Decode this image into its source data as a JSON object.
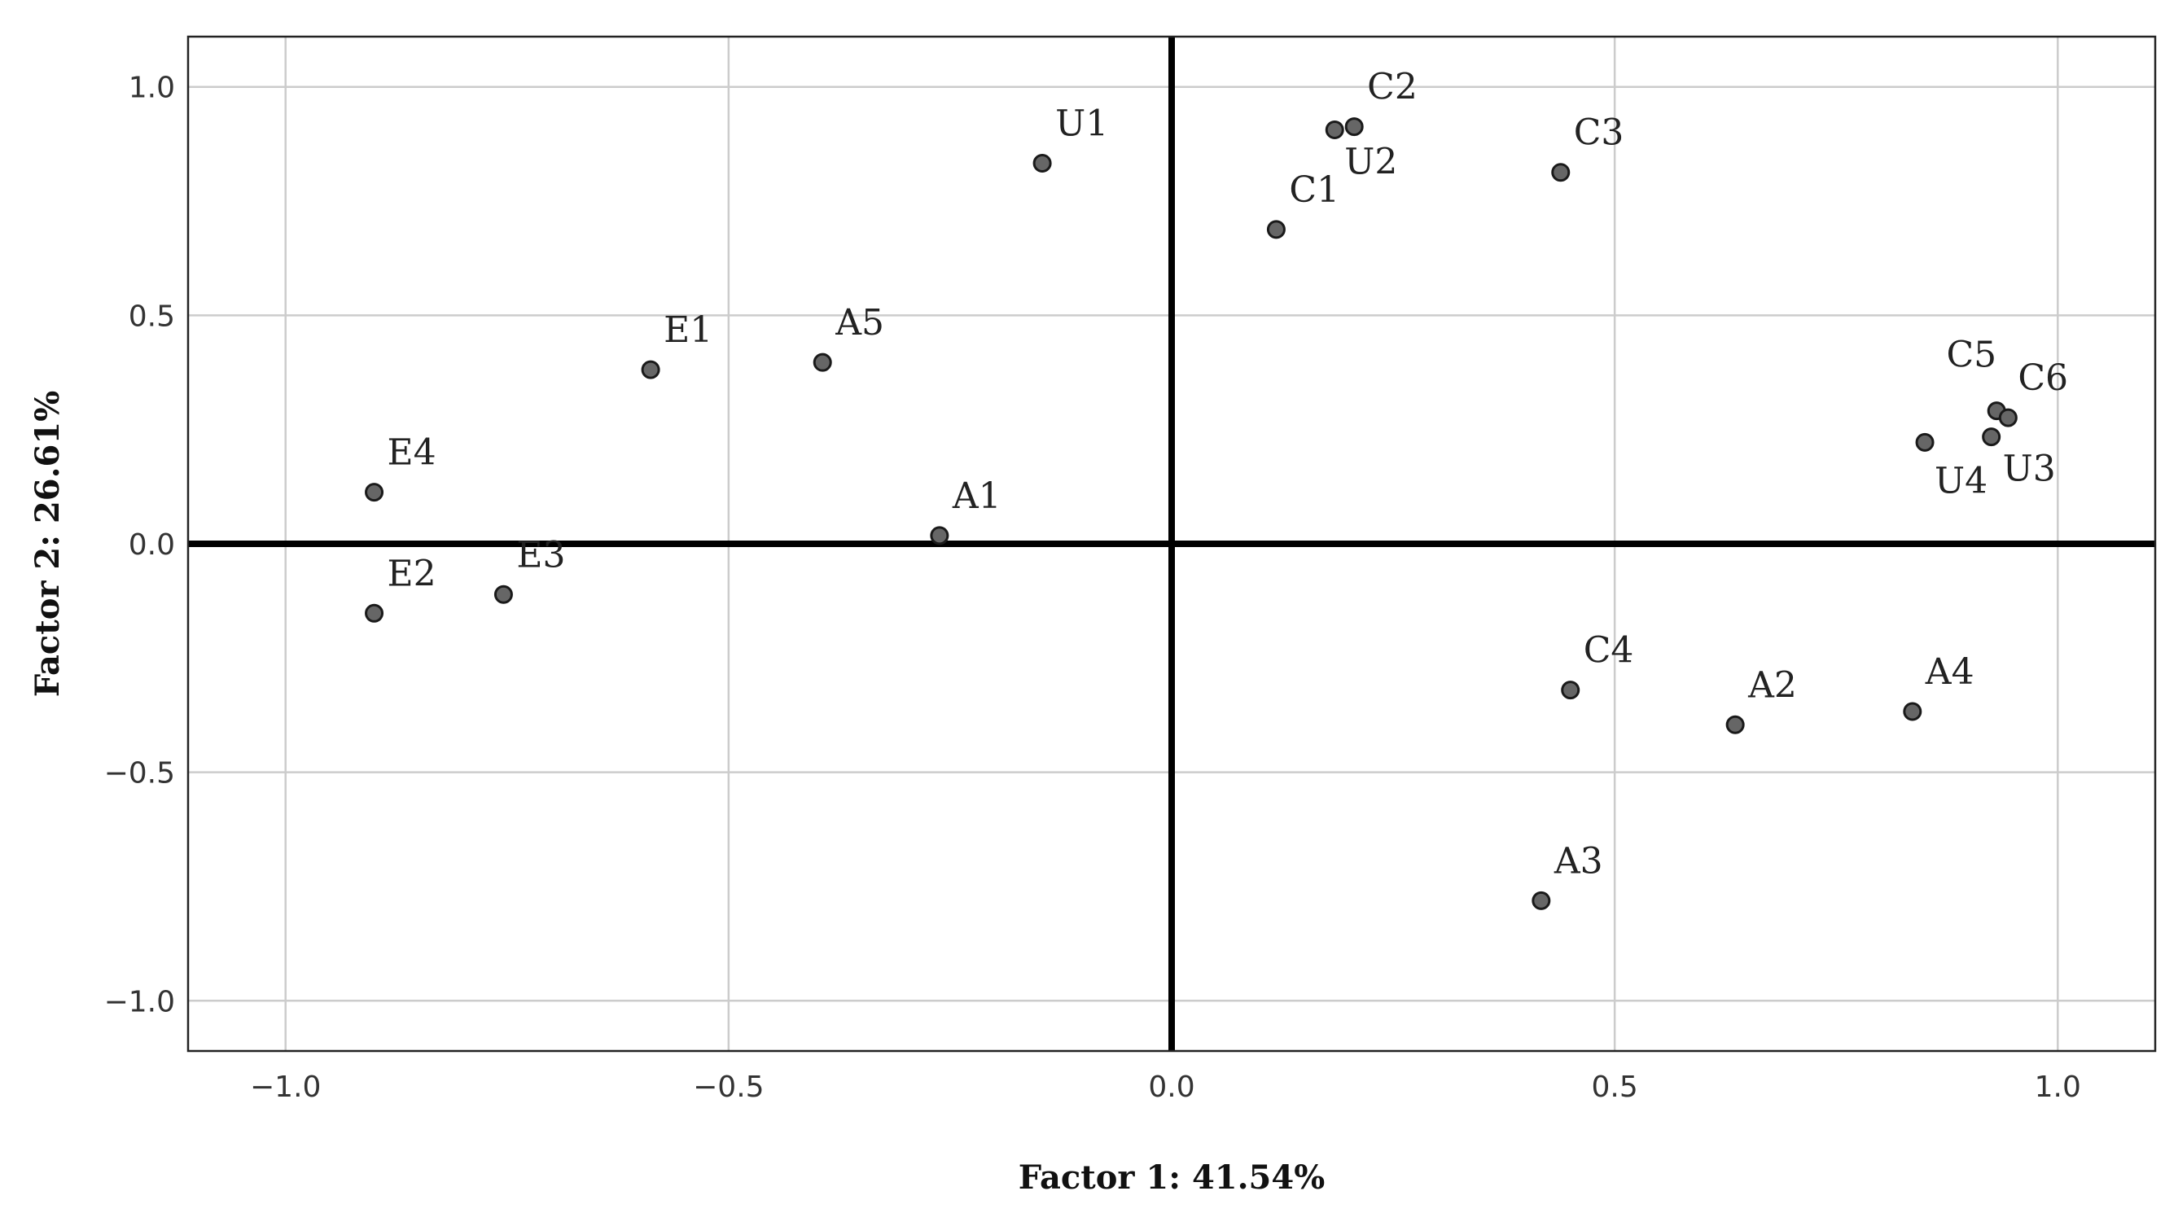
{
  "chart_data": {
    "type": "scatter",
    "title": "",
    "xlabel": "Factor 1: 41.54%",
    "ylabel": "Factor 2: 26.61%",
    "xlim": [
      -1.11,
      1.11
    ],
    "ylim": [
      -1.11,
      1.11
    ],
    "xticks": [
      -1.0,
      -0.5,
      0.0,
      0.5,
      1.0
    ],
    "yticks": [
      -1.0,
      -0.5,
      0.0,
      0.5,
      1.0
    ],
    "xtick_labels": [
      "−1.0",
      "−0.5",
      "0.0",
      "0.5",
      "1.0"
    ],
    "ytick_labels": [
      "−1.0",
      "−0.5",
      "0.0",
      "0.5",
      "1.0"
    ],
    "grid": true,
    "reference_lines": {
      "x": 0,
      "y": 0
    },
    "marker_color": "#666666",
    "points": [
      {
        "label": "U1",
        "x": -0.146,
        "y": 0.833
      },
      {
        "label": "C2",
        "x": 0.206,
        "y": 0.913
      },
      {
        "label": "U2",
        "x": 0.184,
        "y": 0.906
      },
      {
        "label": "C3",
        "x": 0.439,
        "y": 0.813
      },
      {
        "label": "C1",
        "x": 0.118,
        "y": 0.688
      },
      {
        "label": "E1",
        "x": -0.588,
        "y": 0.381
      },
      {
        "label": "A5",
        "x": -0.394,
        "y": 0.397
      },
      {
        "label": "C5",
        "x": 0.931,
        "y": 0.291
      },
      {
        "label": "C6",
        "x": 0.944,
        "y": 0.276
      },
      {
        "label": "U4",
        "x": 0.85,
        "y": 0.222
      },
      {
        "label": "U3",
        "x": 0.925,
        "y": 0.234
      },
      {
        "label": "E4",
        "x": -0.9,
        "y": 0.113
      },
      {
        "label": "A1",
        "x": -0.262,
        "y": 0.018
      },
      {
        "label": "E3",
        "x": -0.754,
        "y": -0.111
      },
      {
        "label": "E2",
        "x": -0.9,
        "y": -0.152
      },
      {
        "label": "C4",
        "x": 0.45,
        "y": -0.32
      },
      {
        "label": "A2",
        "x": 0.636,
        "y": -0.396
      },
      {
        "label": "A4",
        "x": 0.836,
        "y": -0.367
      },
      {
        "label": "A3",
        "x": 0.417,
        "y": -0.781
      }
    ]
  }
}
